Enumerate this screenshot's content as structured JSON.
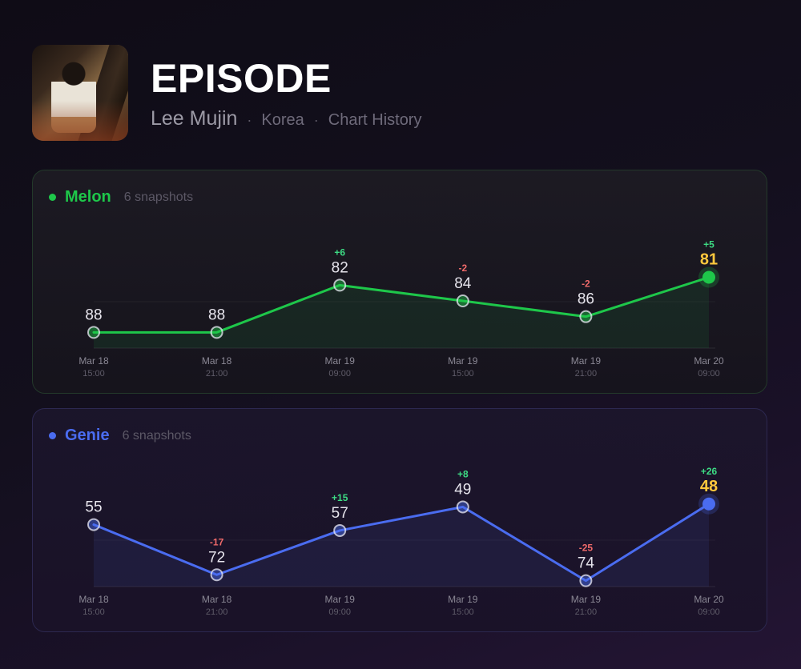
{
  "header": {
    "title": "EPISODE",
    "artist": "Lee Mujin",
    "separator": "·",
    "region": "Korea",
    "section": "Chart History"
  },
  "colors": {
    "melon": "#1ec74a",
    "genie": "#4a6cf0",
    "up": "#3ddc84",
    "down": "#f06a6a",
    "latest": "#ffc83d"
  },
  "charts": [
    {
      "service": "Melon",
      "snapshots_label": "6 snapshots",
      "color": "#1ec74a"
    },
    {
      "service": "Genie",
      "snapshots_label": "6 snapshots",
      "color": "#4a6cf0"
    }
  ],
  "chart_data": [
    {
      "type": "line",
      "title": "Melon",
      "x": [
        [
          "Mar 18",
          "15:00"
        ],
        [
          "Mar 18",
          "21:00"
        ],
        [
          "Mar 19",
          "09:00"
        ],
        [
          "Mar 19",
          "15:00"
        ],
        [
          "Mar 19",
          "21:00"
        ],
        [
          "Mar 20",
          "09:00"
        ]
      ],
      "series": [
        {
          "values": [
            88,
            88,
            82,
            84,
            86,
            81
          ]
        }
      ],
      "changes": [
        "",
        "",
        "+6",
        "-2",
        "-2",
        "+5"
      ],
      "y_inverted": true,
      "ylim": [
        78,
        90
      ],
      "grid": true
    },
    {
      "type": "line",
      "title": "Genie",
      "x": [
        [
          "Mar 18",
          "15:00"
        ],
        [
          "Mar 18",
          "21:00"
        ],
        [
          "Mar 19",
          "09:00"
        ],
        [
          "Mar 19",
          "15:00"
        ],
        [
          "Mar 19",
          "21:00"
        ],
        [
          "Mar 20",
          "09:00"
        ]
      ],
      "series": [
        {
          "values": [
            55,
            72,
            57,
            49,
            74,
            48
          ]
        }
      ],
      "changes": [
        "",
        "-17",
        "+15",
        "+8",
        "-25",
        "+26"
      ],
      "y_inverted": true,
      "ylim": [
        44,
        76
      ],
      "grid": true
    }
  ]
}
